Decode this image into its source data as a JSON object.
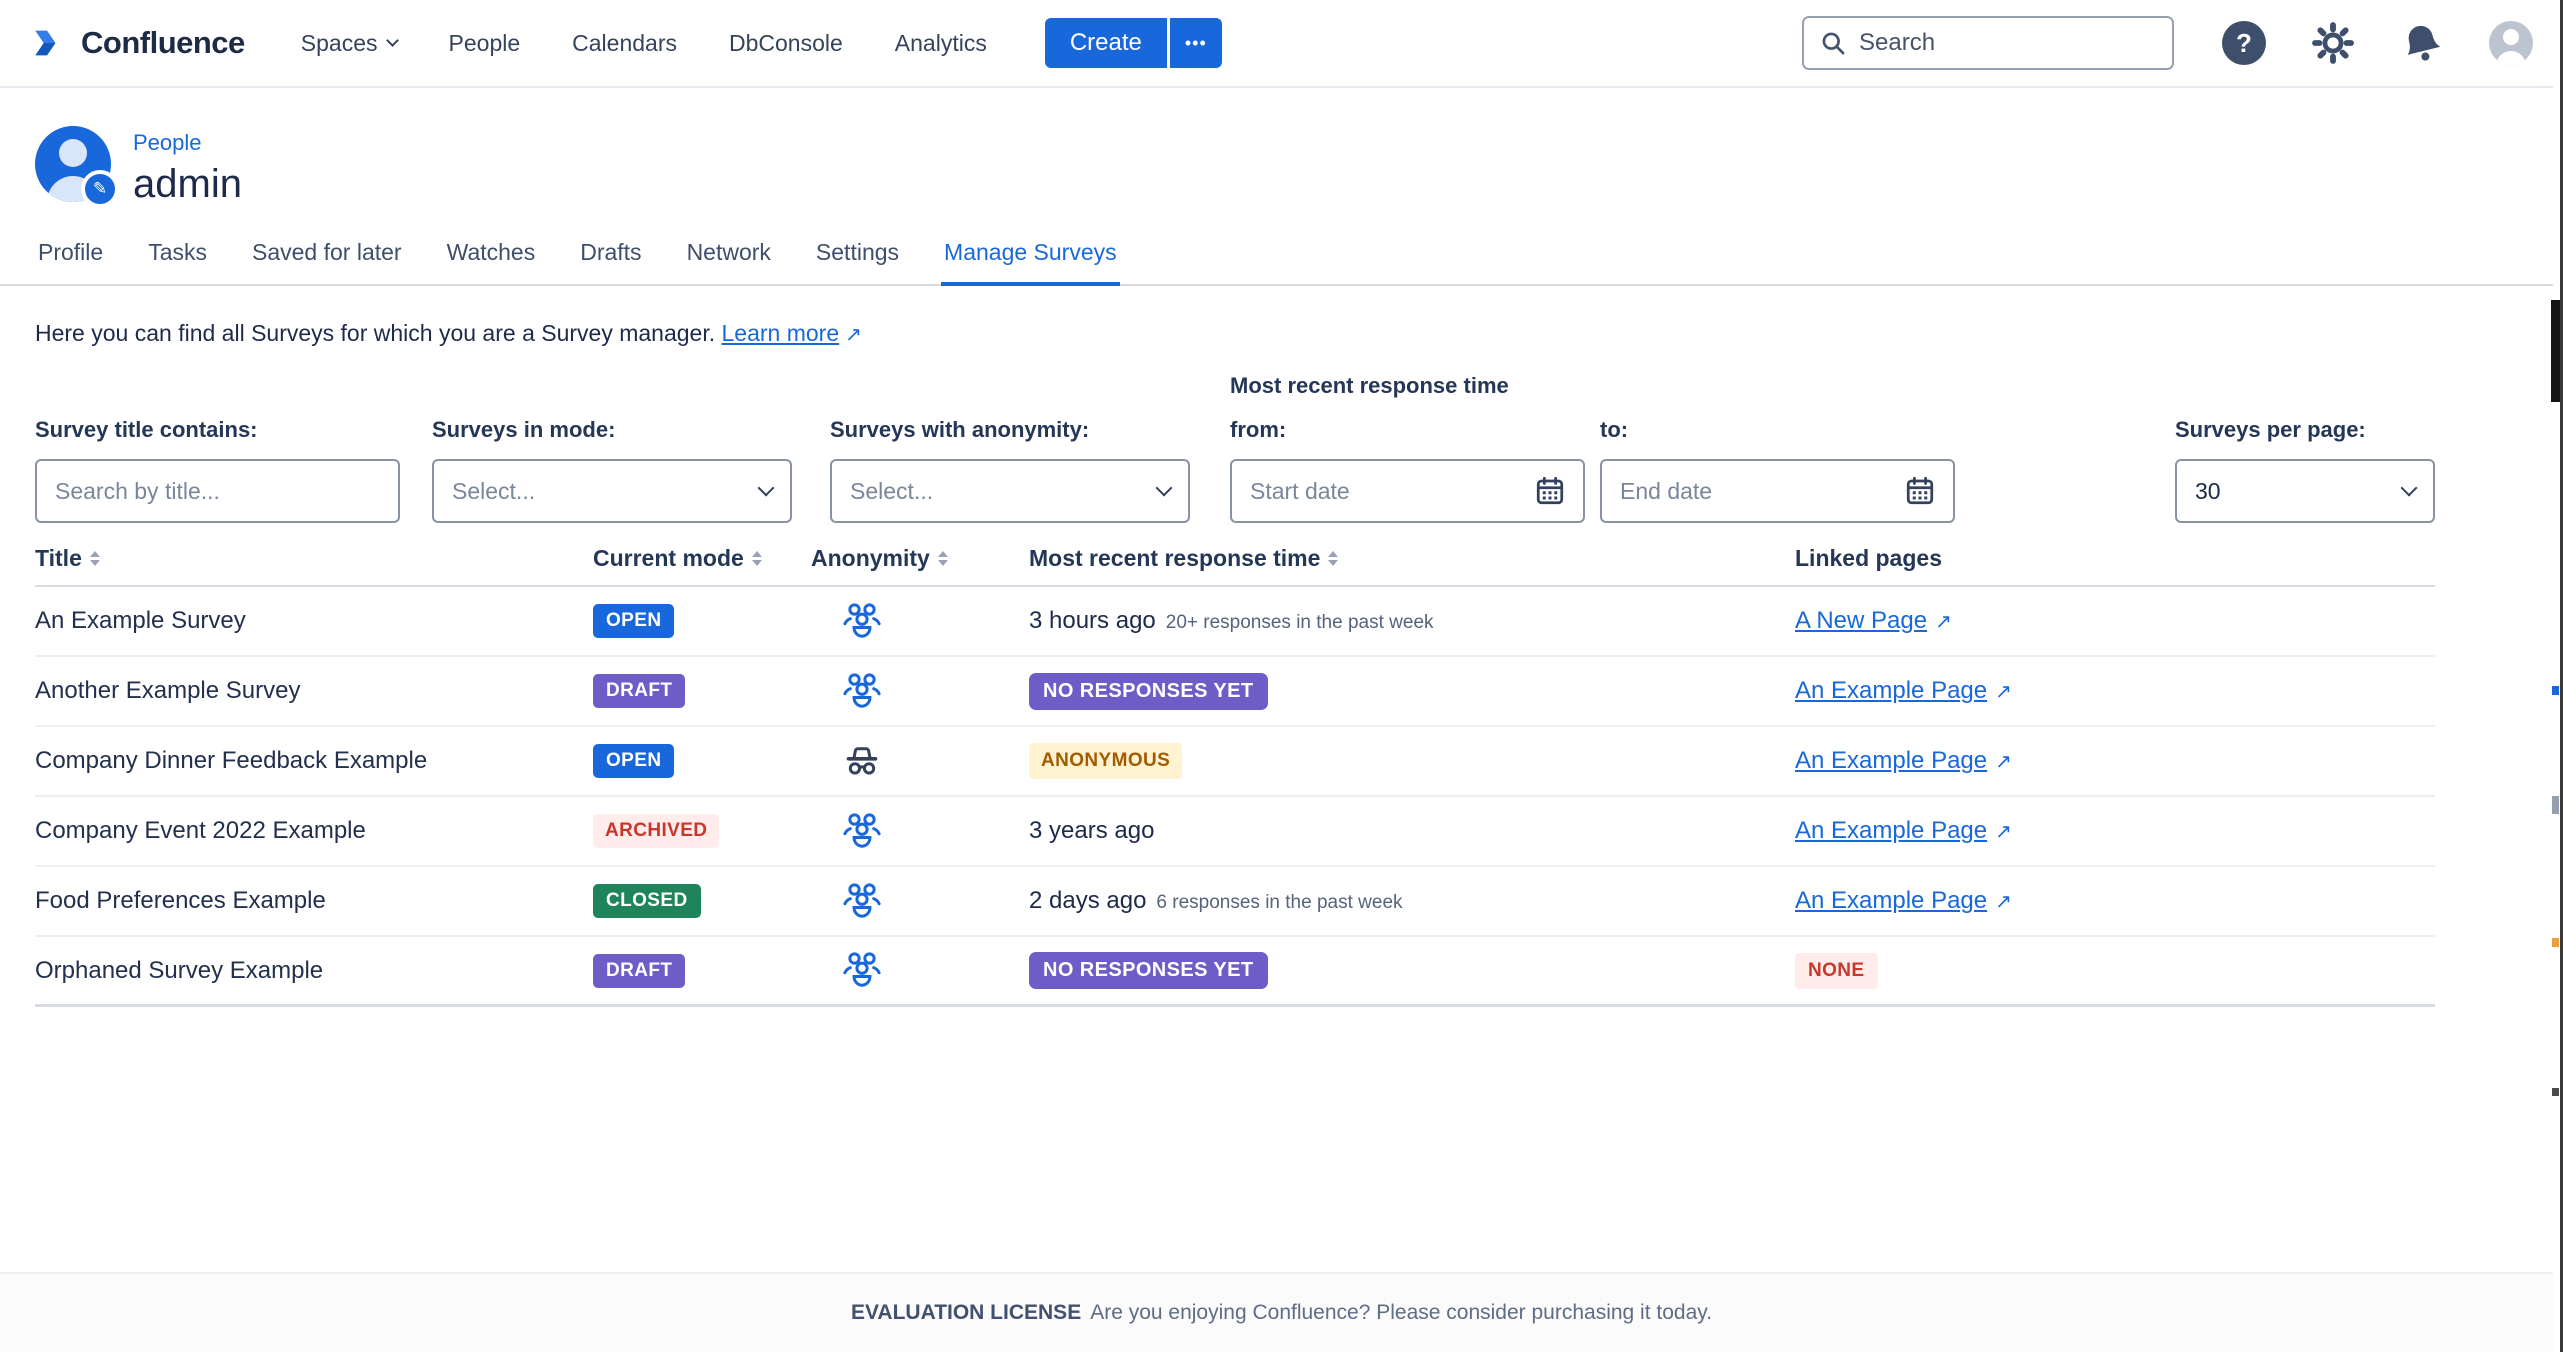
{
  "nav": {
    "brand": "Confluence",
    "items": [
      {
        "label": "Spaces",
        "has_chevron": true
      },
      {
        "label": "People"
      },
      {
        "label": "Calendars"
      },
      {
        "label": "DbConsole"
      },
      {
        "label": "Analytics"
      }
    ],
    "create_label": "Create",
    "more_label": "•••",
    "search_placeholder": "Search",
    "icons": [
      "help-icon",
      "gear-icon",
      "bell-icon",
      "user-avatar"
    ]
  },
  "profile_header": {
    "breadcrumb": "People",
    "title": "admin"
  },
  "tabs": [
    {
      "label": "Profile"
    },
    {
      "label": "Tasks"
    },
    {
      "label": "Saved for later"
    },
    {
      "label": "Watches"
    },
    {
      "label": "Drafts"
    },
    {
      "label": "Network"
    },
    {
      "label": "Settings"
    },
    {
      "label": "Manage Surveys",
      "active": true
    }
  ],
  "intro": {
    "text": "Here you can find all Surveys for which you are a Survey manager.",
    "link_label": "Learn more",
    "link_arrow": "↗"
  },
  "filters": {
    "title_label": "Survey title contains:",
    "title_placeholder": "Search by title...",
    "mode_label": "Surveys in mode:",
    "mode_value": "Select...",
    "anonymity_label": "Surveys with anonymity:",
    "anonymity_value": "Select...",
    "recent_group_label": "Most recent response time",
    "from_label": "from:",
    "from_placeholder": "Start date",
    "to_label": "to:",
    "to_placeholder": "End date",
    "per_page_label": "Surveys per page:",
    "per_page_value": "30"
  },
  "table": {
    "columns": [
      {
        "label": "Title",
        "sortable": true
      },
      {
        "label": "Current mode",
        "sortable": true
      },
      {
        "label": "Anonymity",
        "sortable": true
      },
      {
        "label": "Most recent response time",
        "sortable": true
      },
      {
        "label": "Linked pages",
        "sortable": false
      }
    ],
    "rows": [
      {
        "title": "An Example Survey",
        "mode": {
          "label": "OPEN",
          "style": "open"
        },
        "anonymity": "group",
        "time": {
          "type": "text",
          "main": "3 hours ago",
          "sub": "20+ responses in the past week"
        },
        "linked": {
          "type": "link",
          "label": "A New Page"
        }
      },
      {
        "title": "Another Example Survey",
        "mode": {
          "label": "DRAFT",
          "style": "draft"
        },
        "anonymity": "group",
        "time": {
          "type": "badge",
          "label": "NO RESPONSES YET",
          "style": "no-responses"
        },
        "linked": {
          "type": "link",
          "label": "An Example Page"
        }
      },
      {
        "title": "Company Dinner Feedback Example",
        "mode": {
          "label": "OPEN",
          "style": "open"
        },
        "anonymity": "incognito",
        "time": {
          "type": "badge",
          "label": "ANONYMOUS",
          "style": "anonymous"
        },
        "linked": {
          "type": "link",
          "label": "An Example Page"
        }
      },
      {
        "title": "Company Event 2022 Example",
        "mode": {
          "label": "ARCHIVED",
          "style": "archived"
        },
        "anonymity": "group",
        "time": {
          "type": "text",
          "main": "3 years ago",
          "sub": ""
        },
        "linked": {
          "type": "link",
          "label": "An Example Page"
        }
      },
      {
        "title": "Food Preferences Example",
        "mode": {
          "label": "CLOSED",
          "style": "closed"
        },
        "anonymity": "group",
        "time": {
          "type": "text",
          "main": "2 days ago",
          "sub": "6 responses in the past week"
        },
        "linked": {
          "type": "link",
          "label": "An Example Page"
        }
      },
      {
        "title": "Orphaned Survey Example",
        "mode": {
          "label": "DRAFT",
          "style": "draft"
        },
        "anonymity": "group",
        "time": {
          "type": "badge",
          "label": "NO RESPONSES YET",
          "style": "no-responses"
        },
        "linked": {
          "type": "badge",
          "label": "NONE",
          "style": "none"
        }
      }
    ]
  },
  "footer": {
    "strong": "EVALUATION LICENSE",
    "text": "Are you enjoying Confluence? Please consider purchasing it today."
  },
  "colors": {
    "accent_blue": "#1868DB",
    "nav_text": "#36435C",
    "heading_text": "#1E2A4A",
    "open_badge": "#1868DB",
    "draft_badge": "#6E5DC6",
    "closed_badge": "#1F845A",
    "archived_bg": "#FFECEB",
    "archived_text": "#C9372C",
    "anonymous_bg": "#FFF3D1",
    "anonymous_text": "#A35B00",
    "none_bg": "#FFECEB",
    "none_text": "#C9372C"
  }
}
